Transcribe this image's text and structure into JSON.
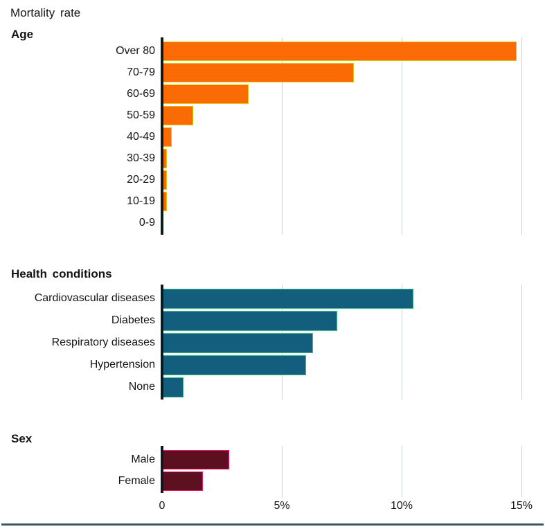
{
  "page_title": "Mortality rate",
  "axis": {
    "tick_labels": [
      "0",
      "5%",
      "10%",
      "15%"
    ],
    "tick_values": [
      0,
      5,
      10,
      15
    ],
    "max_percent": 15
  },
  "colors": {
    "age_bar": "#fa6a05",
    "age_bar_stroke": "#e0c50a",
    "health_bar": "#135e7d",
    "health_bar_stroke": "#3dbd8f",
    "sex_bar": "#5c0f1e",
    "sex_bar_stroke": "#f0146d",
    "gridline": "#c9d3d2",
    "axis_line": "#0d1a1d",
    "bottom_rule": "#3e5a5e",
    "text": "#141414"
  },
  "chart_data": [
    {
      "type": "bar",
      "orientation": "horizontal",
      "title": "Age",
      "categories": [
        "Over 80",
        "70-79",
        "60-69",
        "50-59",
        "40-49",
        "30-39",
        "20-29",
        "10-19",
        "0-9"
      ],
      "values": [
        14.8,
        8.0,
        3.6,
        1.3,
        0.4,
        0.2,
        0.2,
        0.2,
        0.0
      ],
      "unit": "%",
      "xlim": [
        0,
        15
      ],
      "grid": "vertical",
      "bar_color": "#fa6a05",
      "bar_stroke": "#e0c50a"
    },
    {
      "type": "bar",
      "orientation": "horizontal",
      "title": "Health conditions",
      "categories": [
        "Cardiovascular diseases",
        "Diabetes",
        "Respiratory diseases",
        "Hypertension",
        "None"
      ],
      "values": [
        10.5,
        7.3,
        6.3,
        6.0,
        0.9
      ],
      "unit": "%",
      "xlim": [
        0,
        15
      ],
      "grid": "vertical",
      "bar_color": "#135e7d",
      "bar_stroke": "#3dbd8f"
    },
    {
      "type": "bar",
      "orientation": "horizontal",
      "title": "Sex",
      "categories": [
        "Male",
        "Female"
      ],
      "values": [
        2.8,
        1.7
      ],
      "unit": "%",
      "xlim": [
        0,
        15
      ],
      "grid": "vertical",
      "bar_color": "#5c0f1e",
      "bar_stroke": "#f0146d"
    }
  ]
}
